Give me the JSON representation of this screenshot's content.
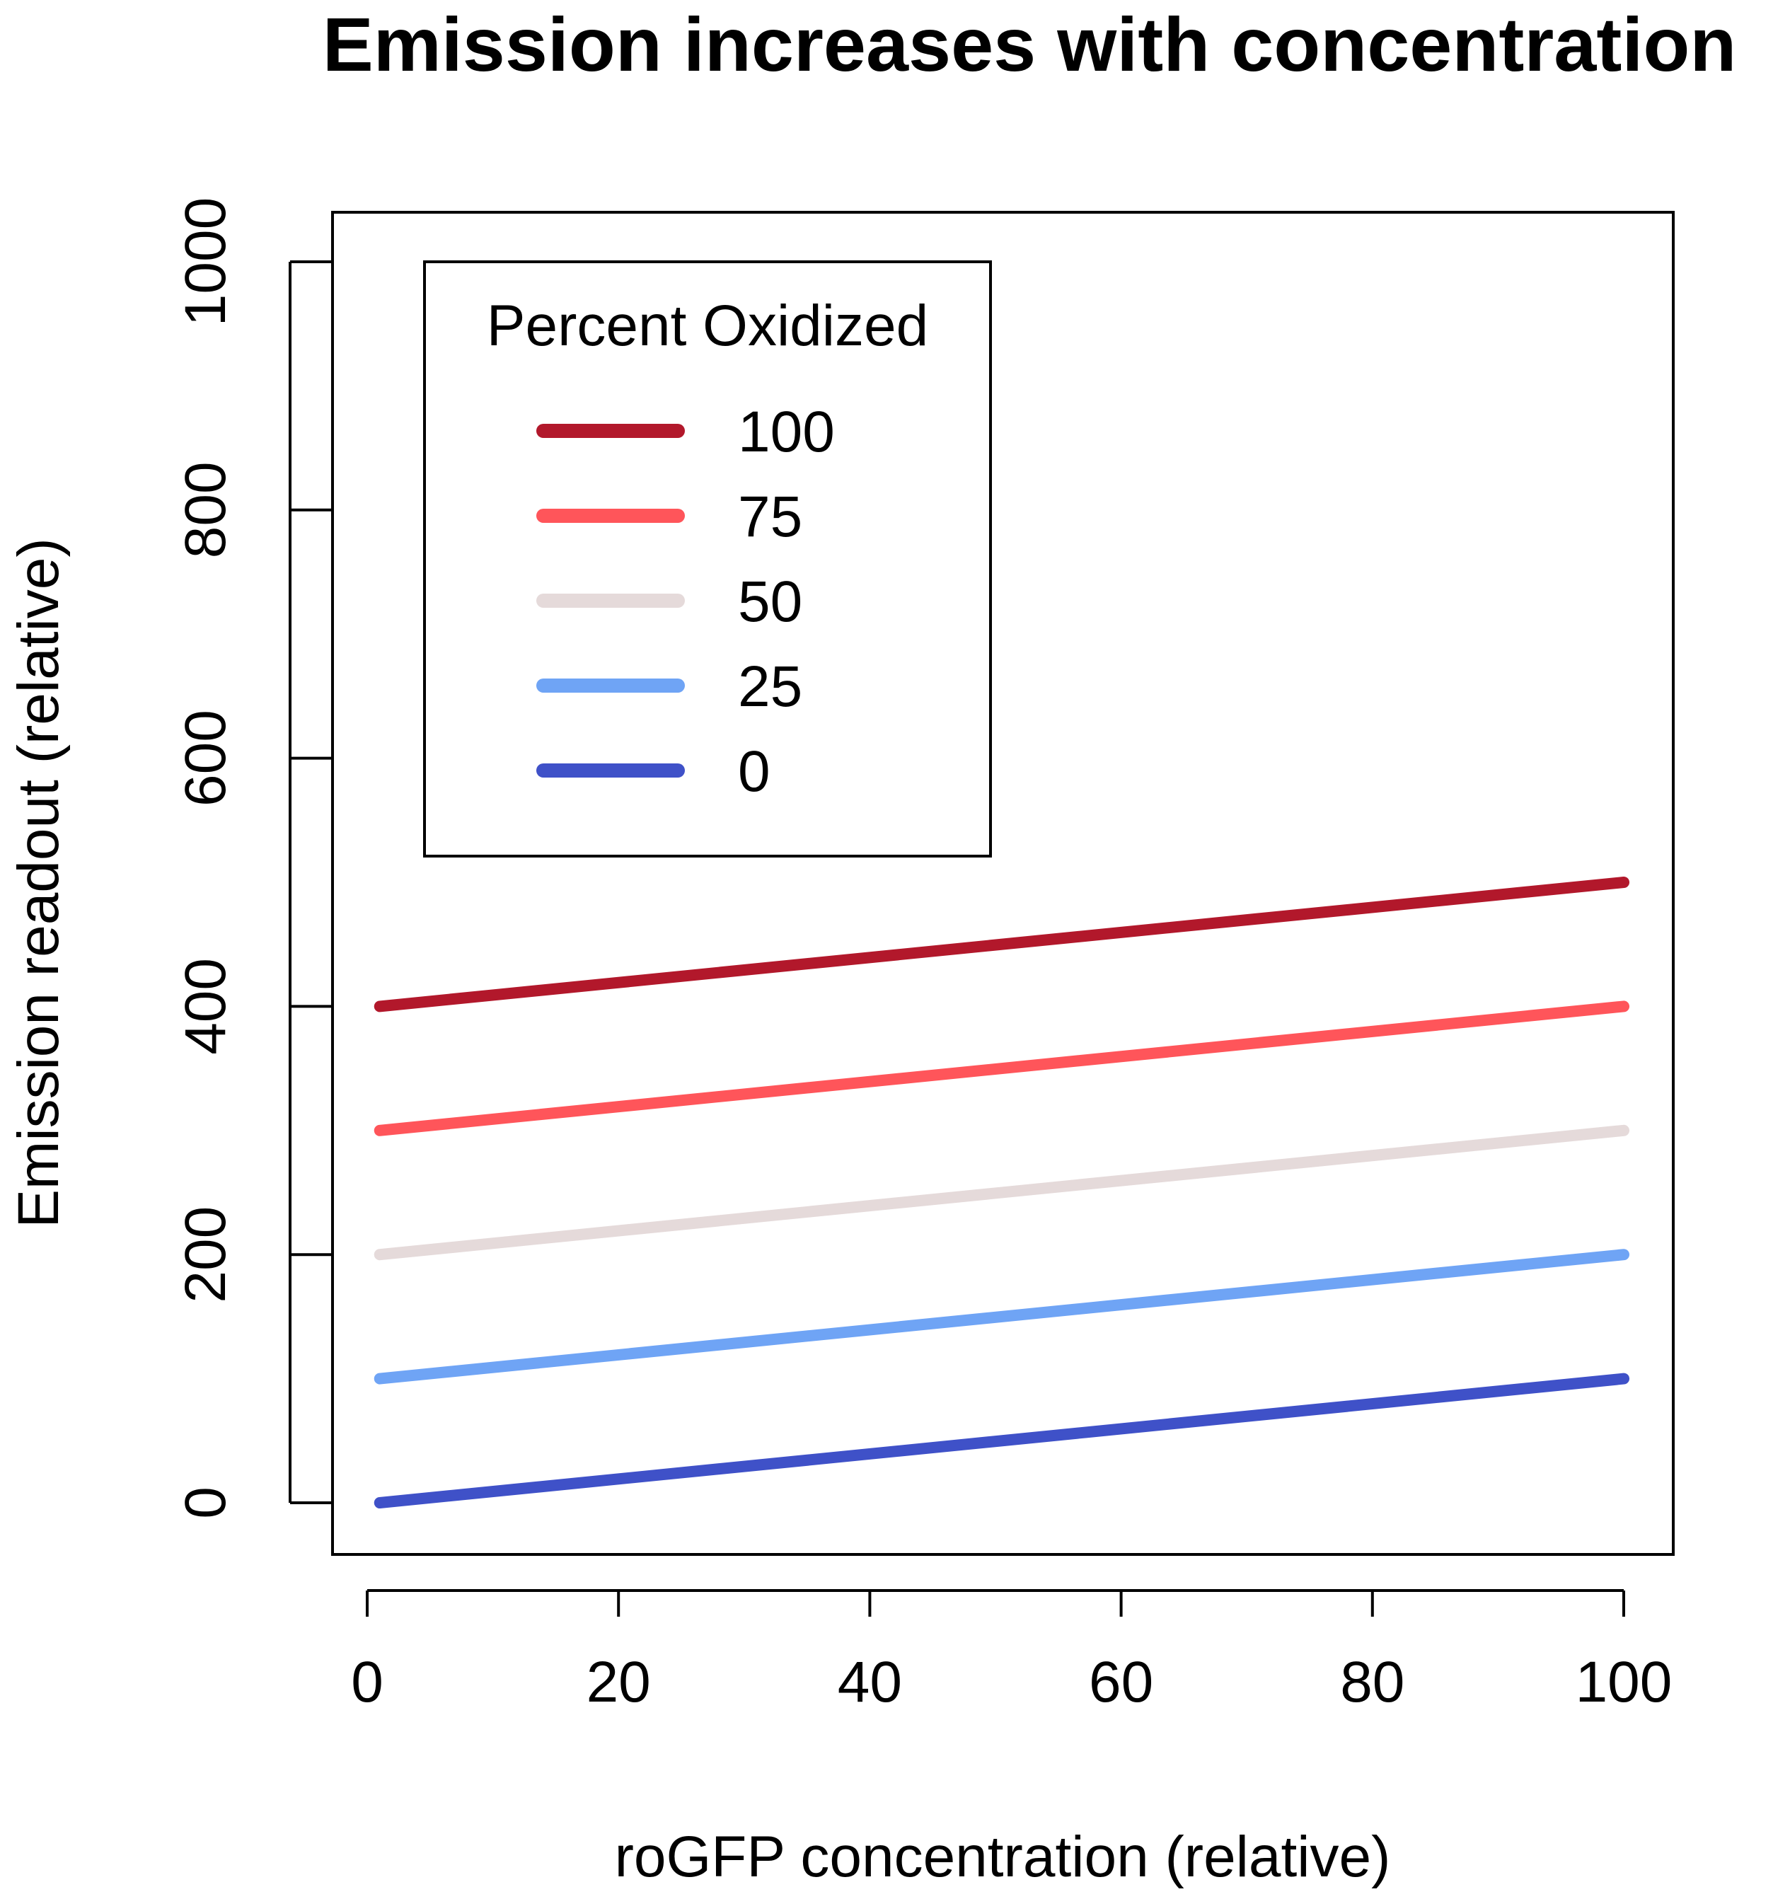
{
  "chart_data": {
    "type": "line",
    "title": "Emission increases with concentration",
    "xlabel": "roGFP concentration (relative)",
    "ylabel": "Emission readout (relative)",
    "xlim": [
      0,
      100
    ],
    "ylim": [
      0,
      1000
    ],
    "x_ticks": [
      0,
      20,
      40,
      60,
      80,
      100
    ],
    "y_ticks": [
      0,
      200,
      400,
      600,
      800,
      1000
    ],
    "grid": false,
    "legend": {
      "title": "Percent Oxidized",
      "position": "top-left"
    },
    "series": [
      {
        "name": "100",
        "color": "#B2182B",
        "x": [
          1,
          100
        ],
        "y": [
          400,
          500
        ]
      },
      {
        "name": "75",
        "color": "#FF555A",
        "x": [
          1,
          100
        ],
        "y": [
          300,
          400
        ]
      },
      {
        "name": "50",
        "color": "#E5DADA",
        "x": [
          1,
          100
        ],
        "y": [
          200,
          300
        ]
      },
      {
        "name": "25",
        "color": "#6FA4F5",
        "x": [
          1,
          100
        ],
        "y": [
          100,
          200
        ]
      },
      {
        "name": "0",
        "color": "#3F51C8",
        "x": [
          1,
          100
        ],
        "y": [
          0,
          100
        ]
      }
    ]
  }
}
